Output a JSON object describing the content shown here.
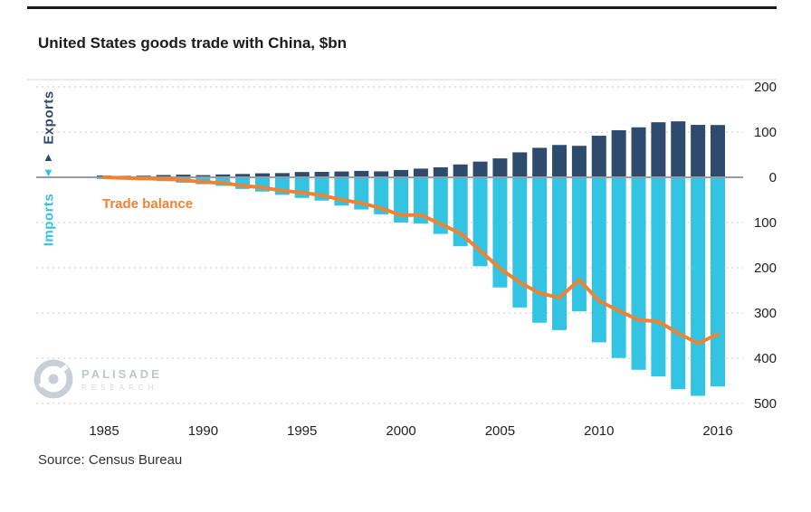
{
  "title": "United States goods trade with China, $bn",
  "source": "Source: Census Bureau",
  "labels": {
    "exports": "Exports",
    "imports": "Imports",
    "trade_balance": "Trade balance"
  },
  "watermark": {
    "name": "PALISADE",
    "sub": "RESEARCH"
  },
  "colors": {
    "exports_bar": "#2E4B6D",
    "imports_bar": "#33C4E4",
    "balance_line": "#F08232",
    "gridline": "#C9C9C9",
    "zero_line": "#9B9BA3",
    "axis_text": "#222222"
  },
  "chart_data": {
    "type": "bar",
    "title": "United States goods trade with China, $bn",
    "x": [
      1985,
      1986,
      1987,
      1988,
      1989,
      1990,
      1991,
      1992,
      1993,
      1994,
      1995,
      1996,
      1997,
      1998,
      1999,
      2000,
      2001,
      2002,
      2003,
      2004,
      2005,
      2006,
      2007,
      2008,
      2009,
      2010,
      2011,
      2012,
      2013,
      2014,
      2015,
      2016
    ],
    "series": [
      {
        "name": "Exports",
        "type": "bar",
        "direction": "up",
        "values": [
          3.9,
          3.1,
          3.5,
          5.0,
          5.8,
          4.8,
          6.3,
          7.4,
          8.8,
          9.3,
          11.7,
          12.0,
          12.8,
          14.2,
          13.1,
          16.2,
          19.2,
          22.1,
          28.4,
          34.7,
          41.8,
          55.2,
          65.2,
          71.5,
          69.6,
          91.9,
          104.1,
          110.5,
          121.7,
          123.7,
          115.9,
          115.6
        ]
      },
      {
        "name": "Imports",
        "type": "bar",
        "direction": "down",
        "values": [
          3.9,
          4.8,
          6.3,
          8.5,
          12.0,
          15.2,
          19.0,
          25.7,
          31.5,
          38.8,
          45.6,
          51.5,
          62.6,
          71.2,
          81.8,
          100.0,
          102.3,
          125.2,
          152.4,
          196.7,
          243.5,
          287.8,
          321.5,
          337.8,
          296.4,
          364.9,
          399.4,
          425.6,
          440.4,
          468.5,
          483.2,
          462.5
        ]
      },
      {
        "name": "Trade balance",
        "type": "line",
        "values": [
          0.0,
          -1.7,
          -2.8,
          -3.5,
          -6.2,
          -10.4,
          -12.7,
          -18.3,
          -22.7,
          -29.5,
          -33.9,
          -39.5,
          -49.8,
          -57.0,
          -68.7,
          -83.8,
          -83.1,
          -103.1,
          -124.0,
          -162.0,
          -201.7,
          -232.6,
          -256.3,
          -266.3,
          -226.8,
          -273.0,
          -295.3,
          -315.1,
          -318.7,
          -344.8,
          -367.3,
          -346.9
        ]
      }
    ],
    "y_axis": {
      "tick_labels": [
        "200",
        "100",
        "0",
        "100",
        "200",
        "300",
        "400",
        "500"
      ],
      "tick_values": [
        200,
        100,
        0,
        -100,
        -200,
        -300,
        -400,
        -500
      ],
      "units": "$bn"
    },
    "x_axis": {
      "tick_labels": [
        "1985",
        "1990",
        "1995",
        "2000",
        "2005",
        "2010",
        "2016"
      ]
    },
    "ylim": [
      -500,
      200
    ],
    "grid": "horizontal-dashed",
    "legend_position": "left-vertical"
  }
}
